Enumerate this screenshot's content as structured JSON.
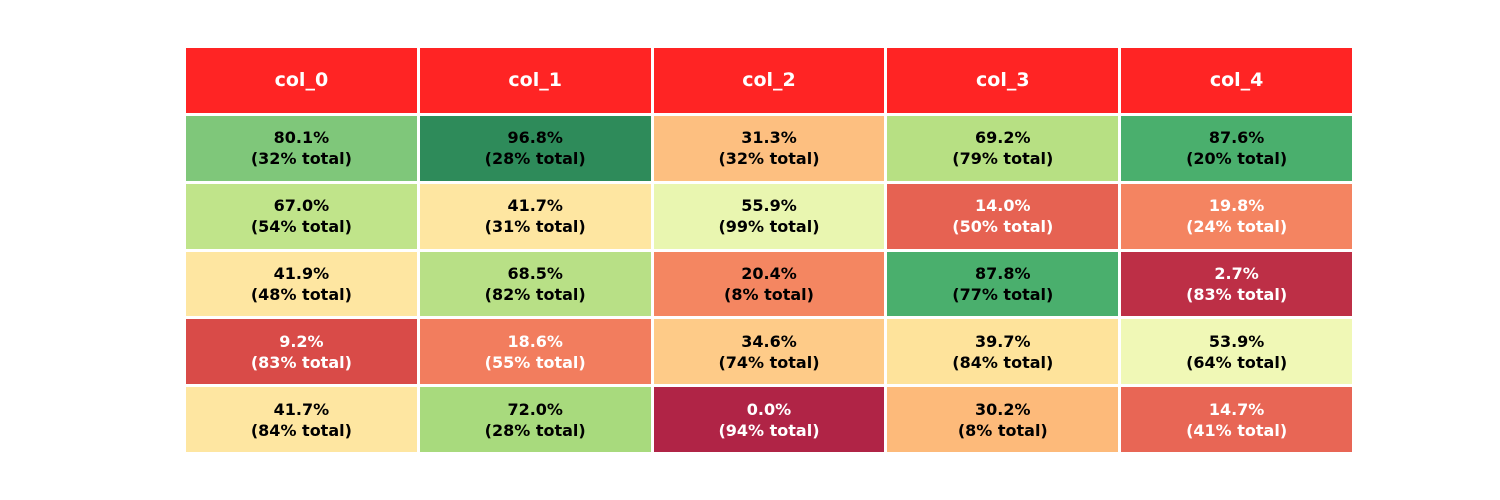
{
  "chart_data": {
    "type": "table",
    "title": "",
    "header_color": "#ff2424",
    "columns": [
      "col_0",
      "col_1",
      "col_2",
      "col_3",
      "col_4"
    ],
    "rows": [
      [
        {
          "pct": "80.1%",
          "total": "(32% total)",
          "bg": "#7fc77a",
          "fg": "#000000"
        },
        {
          "pct": "96.8%",
          "total": "(28% total)",
          "bg": "#2e8b5a",
          "fg": "#000000"
        },
        {
          "pct": "31.3%",
          "total": "(32% total)",
          "bg": "#fdbf80",
          "fg": "#000000"
        },
        {
          "pct": "69.2%",
          "total": "(79% total)",
          "bg": "#b7e083",
          "fg": "#000000"
        },
        {
          "pct": "87.6%",
          "total": "(20% total)",
          "bg": "#4aaf6d",
          "fg": "#000000"
        }
      ],
      [
        {
          "pct": "67.0%",
          "total": "(54% total)",
          "bg": "#c0e48a",
          "fg": "#000000"
        },
        {
          "pct": "41.7%",
          "total": "(31% total)",
          "bg": "#fee6a1",
          "fg": "#000000"
        },
        {
          "pct": "55.9%",
          "total": "(99% total)",
          "bg": "#e9f6b0",
          "fg": "#000000"
        },
        {
          "pct": "14.0%",
          "total": "(50% total)",
          "bg": "#e66252",
          "fg": "#ffffff"
        },
        {
          "pct": "19.8%",
          "total": "(24% total)",
          "bg": "#f48461",
          "fg": "#ffffff"
        }
      ],
      [
        {
          "pct": "41.9%",
          "total": "(48% total)",
          "bg": "#fee6a1",
          "fg": "#000000"
        },
        {
          "pct": "68.5%",
          "total": "(82% total)",
          "bg": "#b8e086",
          "fg": "#000000"
        },
        {
          "pct": "20.4%",
          "total": "(8% total)",
          "bg": "#f48661",
          "fg": "#000000"
        },
        {
          "pct": "87.8%",
          "total": "(77% total)",
          "bg": "#4aaf6d",
          "fg": "#000000"
        },
        {
          "pct": "2.7%",
          "total": "(83% total)",
          "bg": "#bd2f46",
          "fg": "#ffffff"
        }
      ],
      [
        {
          "pct": "9.2%",
          "total": "(83% total)",
          "bg": "#d94b48",
          "fg": "#ffffff"
        },
        {
          "pct": "18.6%",
          "total": "(55% total)",
          "bg": "#f27d5e",
          "fg": "#ffffff"
        },
        {
          "pct": "34.6%",
          "total": "(74% total)",
          "bg": "#fecb88",
          "fg": "#000000"
        },
        {
          "pct": "39.7%",
          "total": "(84% total)",
          "bg": "#fee39b",
          "fg": "#000000"
        },
        {
          "pct": "53.9%",
          "total": "(64% total)",
          "bg": "#f0f8b6",
          "fg": "#000000"
        }
      ],
      [
        {
          "pct": "41.7%",
          "total": "(84% total)",
          "bg": "#fee6a1",
          "fg": "#000000"
        },
        {
          "pct": "72.0%",
          "total": "(28% total)",
          "bg": "#a8da7d",
          "fg": "#000000"
        },
        {
          "pct": "0.0%",
          "total": "(94% total)",
          "bg": "#b02446",
          "fg": "#ffffff"
        },
        {
          "pct": "30.2%",
          "total": "(8% total)",
          "bg": "#fdba7a",
          "fg": "#000000"
        },
        {
          "pct": "14.7%",
          "total": "(41% total)",
          "bg": "#e86655",
          "fg": "#ffffff"
        }
      ]
    ]
  }
}
